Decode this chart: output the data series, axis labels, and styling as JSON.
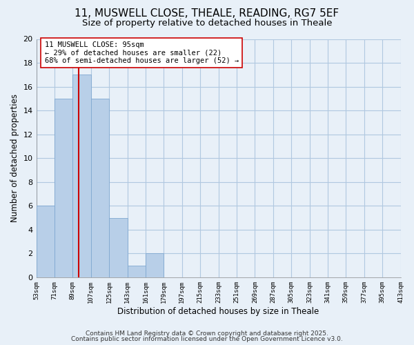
{
  "title": "11, MUSWELL CLOSE, THEALE, READING, RG7 5EF",
  "subtitle": "Size of property relative to detached houses in Theale",
  "xlabel": "Distribution of detached houses by size in Theale",
  "ylabel": "Number of detached properties",
  "bin_edges": [
    53,
    71,
    89,
    107,
    125,
    143,
    161,
    179,
    197,
    215,
    233,
    251,
    269,
    287,
    305,
    323,
    341,
    359,
    377,
    395,
    413
  ],
  "counts": [
    6,
    15,
    17,
    15,
    5,
    1,
    2,
    0,
    0,
    0,
    0,
    0,
    0,
    0,
    0,
    0,
    0,
    0,
    0,
    0
  ],
  "bar_color": "#b8cfe8",
  "bar_edge_color": "#7fa8d0",
  "grid_color": "#b0c8e0",
  "background_color": "#e8f0f8",
  "property_line_x": 95,
  "property_line_color": "#cc0000",
  "annotation_title": "11 MUSWELL CLOSE: 95sqm",
  "annotation_line1": "← 29% of detached houses are smaller (22)",
  "annotation_line2": "68% of semi-detached houses are larger (52) →",
  "annotation_box_edge": "#cc0000",
  "ylim": [
    0,
    20
  ],
  "yticks": [
    0,
    2,
    4,
    6,
    8,
    10,
    12,
    14,
    16,
    18,
    20
  ],
  "footer_line1": "Contains HM Land Registry data © Crown copyright and database right 2025.",
  "footer_line2": "Contains public sector information licensed under the Open Government Licence v3.0.",
  "title_fontsize": 11,
  "subtitle_fontsize": 9.5,
  "footer_fontsize": 6.5,
  "annotation_fontsize": 7.5
}
